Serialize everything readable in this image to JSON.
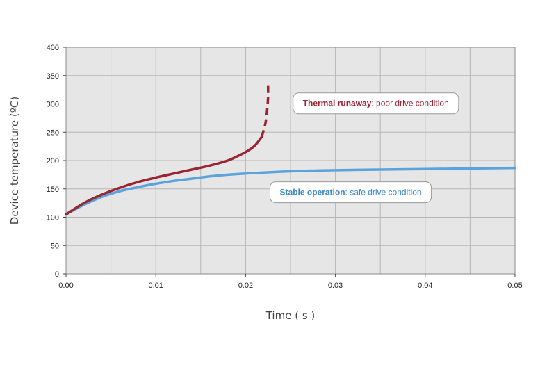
{
  "chart_data": {
    "type": "line",
    "xlabel": "Time ( s )",
    "ylabel": "Device temperature (ºC)",
    "xlim": [
      0,
      0.05
    ],
    "ylim": [
      0,
      400
    ],
    "x_ticks": [
      "0.00",
      "0.01",
      "0.02",
      "0.03",
      "0.04",
      "0.05"
    ],
    "y_ticks": [
      "0",
      "50",
      "100",
      "150",
      "200",
      "250",
      "300",
      "350",
      "400"
    ],
    "x_tick_values": [
      0,
      0.01,
      0.02,
      0.03,
      0.04,
      0.05
    ],
    "y_tick_values": [
      0,
      50,
      100,
      150,
      200,
      250,
      300,
      350,
      400
    ],
    "grid": true,
    "background_color": "#e6e6e6",
    "grid_color": "#b5b5b5",
    "series": [
      {
        "id": "thermal",
        "color": "#9b2433",
        "points": [
          [
            0.0,
            105
          ],
          [
            0.002,
            125
          ],
          [
            0.004,
            140
          ],
          [
            0.006,
            152
          ],
          [
            0.008,
            162
          ],
          [
            0.01,
            170
          ],
          [
            0.012,
            177
          ],
          [
            0.014,
            184
          ],
          [
            0.016,
            191
          ],
          [
            0.018,
            200
          ],
          [
            0.019,
            207
          ],
          [
            0.02,
            215
          ],
          [
            0.021,
            226
          ],
          [
            0.0218,
            242
          ]
        ],
        "dashed_points": [
          [
            0.0218,
            242
          ],
          [
            0.0222,
            265
          ],
          [
            0.0224,
            290
          ],
          [
            0.0225,
            312
          ],
          [
            0.0225,
            332
          ]
        ]
      },
      {
        "id": "stable",
        "color": "#5ba3dc",
        "points": [
          [
            0.0,
            105
          ],
          [
            0.002,
            122
          ],
          [
            0.004,
            136
          ],
          [
            0.006,
            146
          ],
          [
            0.008,
            153
          ],
          [
            0.01,
            159
          ],
          [
            0.012,
            164
          ],
          [
            0.014,
            168
          ],
          [
            0.016,
            172
          ],
          [
            0.018,
            175
          ],
          [
            0.02,
            177
          ],
          [
            0.025,
            181
          ],
          [
            0.03,
            183
          ],
          [
            0.035,
            184
          ],
          [
            0.04,
            185
          ],
          [
            0.045,
            186
          ],
          [
            0.05,
            187
          ]
        ]
      }
    ],
    "annotations": [
      {
        "id": "thermal-callout",
        "bold": "Thermal runaway",
        "rest": ": poor drive condition",
        "color": "#9b2433",
        "anchor": [
          0.0345,
          301
        ]
      },
      {
        "id": "stable-callout",
        "bold": "Stable operation",
        "rest": ": safe drive condition",
        "color": "#3b86c8",
        "anchor": [
          0.0317,
          144
        ]
      }
    ]
  }
}
